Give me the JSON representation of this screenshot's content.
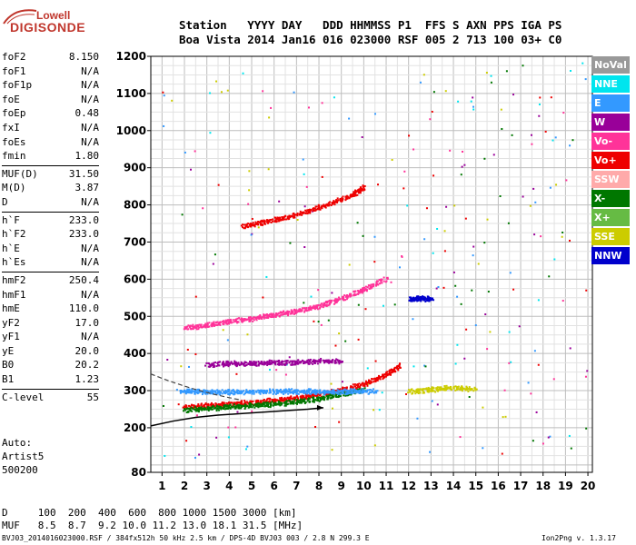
{
  "logo": {
    "line1": "Lowell",
    "line2": "DIGISONDE",
    "color": "#c0362c"
  },
  "header": {
    "labels": "Station   YYYY DAY   DDD HHMMSS P1  FFS S AXN PPS IGA PS",
    "values": "Boa Vista 2014 Jan16 016 023000 RSF 005 2 713 100 03+ C0"
  },
  "params": [
    {
      "name": "foF2",
      "value": "8.150"
    },
    {
      "name": "foF1",
      "value": "N/A"
    },
    {
      "name": "foF1p",
      "value": "N/A"
    },
    {
      "name": "foE",
      "value": "N/A"
    },
    {
      "name": "foEp",
      "value": "0.48"
    },
    {
      "name": "fxI",
      "value": "N/A"
    },
    {
      "name": "foEs",
      "value": "N/A"
    },
    {
      "name": "fmin",
      "value": "1.80"
    },
    {
      "name": "MUF(D)",
      "value": "31.50"
    },
    {
      "name": "M(D)",
      "value": "3.87"
    },
    {
      "name": "D",
      "value": "N/A"
    },
    {
      "name": "h`F",
      "value": "233.0"
    },
    {
      "name": "h`F2",
      "value": "233.0"
    },
    {
      "name": "h`E",
      "value": "N/A"
    },
    {
      "name": "h`Es",
      "value": "N/A"
    },
    {
      "name": "hmF2",
      "value": "250.4"
    },
    {
      "name": "hmF1",
      "value": "N/A"
    },
    {
      "name": "hmE",
      "value": "110.0"
    },
    {
      "name": "yF2",
      "value": "17.0"
    },
    {
      "name": "yF1",
      "value": "N/A"
    },
    {
      "name": "yE",
      "value": "20.0"
    },
    {
      "name": "B0",
      "value": "20.2"
    },
    {
      "name": "B1",
      "value": "1.23"
    },
    {
      "name": "C-level",
      "value": "55"
    }
  ],
  "auto": {
    "line1": "Auto:",
    "line2": "Artist5",
    "line3": "500200"
  },
  "legend": [
    {
      "label": "NoVal",
      "color": "#999999"
    },
    {
      "label": "NNE",
      "color": "#00e5ee"
    },
    {
      "label": "E",
      "color": "#3399ff"
    },
    {
      "label": "W",
      "color": "#990099"
    },
    {
      "label": "Vo-",
      "color": "#ff3399"
    },
    {
      "label": "Vo+",
      "color": "#ee0000"
    },
    {
      "label": "SSW",
      "color": "#ffaaaa"
    },
    {
      "label": "X-",
      "color": "#007700"
    },
    {
      "label": "X+",
      "color": "#66bb44"
    },
    {
      "label": "SSE",
      "color": "#cccc00"
    },
    {
      "label": "NNW",
      "color": "#0000cc"
    }
  ],
  "scale": {
    "d_line": "D     100  200  400  600  800 1000 1500 3000 [km]",
    "muf_line": "MUF   8.5  8.7  9.2 10.0 11.2 13.0 18.1 31.5 [MHz]"
  },
  "footer": {
    "left": "BVJ03_2014016023000.RSF / 384fx512h 50 kHz 2.5 km / DPS-4D BVJ03 003 / 2.8 N 299.3 E",
    "right": "Ion2Png v. 1.3.17"
  },
  "chart_data": {
    "type": "scatter",
    "title": "",
    "xlabel": "",
    "ylabel": "",
    "xlim": [
      0.5,
      20.2
    ],
    "ylim": [
      80,
      1200
    ],
    "x_ticks": [
      1,
      2,
      3,
      4,
      5,
      6,
      7,
      8,
      9,
      10,
      11,
      12,
      13,
      14,
      15,
      16,
      17,
      18,
      19,
      20
    ],
    "y_ticks": [
      80,
      200,
      300,
      400,
      500,
      600,
      700,
      800,
      900,
      1000,
      1100,
      1200
    ],
    "grid": true,
    "traces": [
      {
        "name": "F-trace",
        "color": "#ee0000",
        "x": [
          2.0,
          3.0,
          4.0,
          5.0,
          6.0,
          7.0,
          8.0,
          9.0,
          10.0,
          11.0,
          11.6
        ],
        "y": [
          258,
          262,
          266,
          270,
          276,
          282,
          292,
          305,
          320,
          345,
          370
        ]
      },
      {
        "name": "X-trace",
        "color": "#007700",
        "x": [
          2.0,
          3.0,
          4.0,
          5.0,
          6.0,
          7.0,
          8.0,
          9.0,
          10.0
        ],
        "y": [
          250,
          254,
          258,
          262,
          266,
          272,
          280,
          292,
          305
        ]
      },
      {
        "name": "2F-trace",
        "color": "#ff3399",
        "x": [
          2.0,
          3.0,
          4.0,
          5.0,
          6.0,
          7.0,
          8.0,
          9.0,
          10.0,
          11.0
        ],
        "y": [
          470,
          478,
          488,
          496,
          506,
          516,
          530,
          550,
          575,
          605
        ]
      },
      {
        "name": "3F-trace",
        "color": "#ee0000",
        "x": [
          4.6,
          5.5,
          6.5,
          7.5,
          8.5,
          9.5,
          10.0
        ],
        "y": [
          745,
          755,
          768,
          785,
          805,
          830,
          850
        ]
      },
      {
        "name": "E-band",
        "color": "#3399ff",
        "x": [
          1.8,
          2.5,
          3.5,
          4.5,
          5.5,
          6.5,
          7.5,
          8.5,
          9.5,
          10.5
        ],
        "y": [
          300,
          300,
          298,
          298,
          300,
          300,
          300,
          298,
          300,
          300
        ]
      },
      {
        "name": "W-band",
        "color": "#990099",
        "x": [
          3.0,
          4.0,
          5.0,
          6.0,
          7.0,
          8.0,
          9.0
        ],
        "y": [
          372,
          375,
          375,
          378,
          378,
          382,
          380
        ]
      },
      {
        "name": "SSE-band",
        "color": "#cccc00",
        "x": [
          12.0,
          13.0,
          14.0,
          15.0
        ],
        "y": [
          300,
          305,
          310,
          305
        ]
      },
      {
        "name": "NNW-band",
        "color": "#0000cc",
        "x": [
          12.0,
          12.5,
          13.0
        ],
        "y": [
          548,
          550,
          548
        ]
      }
    ],
    "profile_curve": {
      "x": [
        0.5,
        1.5,
        2.5,
        3.5,
        4.5,
        5.5,
        6.5,
        7.5,
        8.2
      ],
      "y": [
        205,
        218,
        228,
        234,
        238,
        242,
        246,
        250,
        254
      ]
    }
  }
}
